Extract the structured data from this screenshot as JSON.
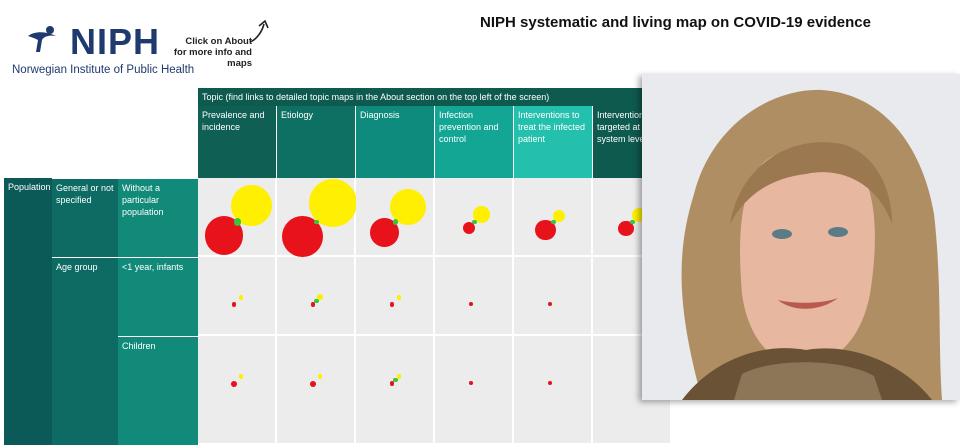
{
  "logo": {
    "wordmark": "NIPH",
    "subtitle": "Norwegian Institute of Public Health"
  },
  "about_note": "Click on About for more info and maps",
  "title": "NIPH systematic and living map on COVID-19 evidence",
  "topic_header": "Topic (find links to detailed topic maps in the About section on the top left of the screen)",
  "columns": [
    {
      "label": "Prevalence and incidence",
      "color": "#0f5f55"
    },
    {
      "label": "Etiology",
      "color": "#0e6f63"
    },
    {
      "label": "Diagnosis",
      "color": "#0e8b7d"
    },
    {
      "label": "Infection prevention and control",
      "color": "#13a695"
    },
    {
      "label": "Interventions to treat the infected patient",
      "color": "#23c1ad"
    },
    {
      "label": "Interventions targeted at system level",
      "color": "#0e5a4e"
    }
  ],
  "rows": {
    "population_label": "Population",
    "groups": [
      {
        "label": "General or not specified",
        "sub": "Without a particular population"
      },
      {
        "label": "Age group",
        "sub": "<1 year, infants"
      },
      {
        "label": "",
        "sub": "Children"
      }
    ]
  },
  "colors": {
    "yellow": "#ffef00",
    "red": "#e8121b",
    "green": "#3cc43c"
  },
  "bubbles": [
    [
      {
        "y": 0.85,
        "r": 0.8,
        "g": 0.15
      },
      {
        "y": 1.0,
        "r": 0.85,
        "g": 0.1
      },
      {
        "y": 0.75,
        "r": 0.6,
        "g": 0.12
      },
      {
        "y": 0.35,
        "r": 0.25,
        "g": 0.1
      },
      {
        "y": 0.25,
        "r": 0.42,
        "g": 0.1
      },
      {
        "y": 0.3,
        "r": 0.32,
        "g": 0.1
      }
    ],
    [
      {
        "y": 0.1,
        "r": 0.1,
        "g": 0.0
      },
      {
        "y": 0.12,
        "r": 0.1,
        "g": 0.1
      },
      {
        "y": 0.1,
        "r": 0.1,
        "g": 0.0
      },
      {
        "y": 0.0,
        "r": 0.08,
        "g": 0.0
      },
      {
        "y": 0.0,
        "r": 0.08,
        "g": 0.0
      },
      {
        "y": 0.0,
        "r": 0.0,
        "g": 0.0
      }
    ],
    [
      {
        "y": 0.1,
        "r": 0.12,
        "g": 0.0
      },
      {
        "y": 0.1,
        "r": 0.12,
        "g": 0.0
      },
      {
        "y": 0.1,
        "r": 0.1,
        "g": 0.1
      },
      {
        "y": 0.0,
        "r": 0.08,
        "g": 0.0
      },
      {
        "y": 0.0,
        "r": 0.08,
        "g": 0.0
      },
      {
        "y": 0.0,
        "r": 0.0,
        "g": 0.0
      }
    ]
  ],
  "photo_alt": "Portrait"
}
